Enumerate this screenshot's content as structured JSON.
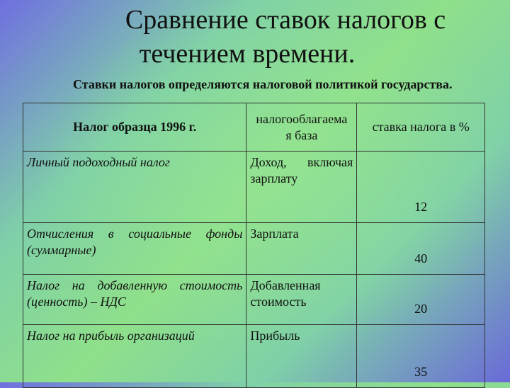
{
  "title": {
    "line1": "Сравнение ставок налогов с",
    "line2": "течением времени."
  },
  "subtitle": "Ставки налогов определяются налоговой политикой государства.",
  "table": {
    "headers": {
      "tax": "Налог образца 1996 г.",
      "base_line1": "налогооблагаема",
      "base_line2": "я база",
      "rate": "ставка налога в %"
    },
    "rows": [
      {
        "tax": "Личный подоходный налог",
        "base": "Доход, включая зарплату",
        "rate": "12"
      },
      {
        "tax": "Отчисления в социальные фонды (суммарные)",
        "base": "Зарплата",
        "rate": "40"
      },
      {
        "tax": "Налог на добавленную стоимость (ценность) – НДС",
        "base": "Добавленная стоимость",
        "rate": "20"
      },
      {
        "tax": "Налог на прибыль организаций",
        "base": "Прибыль",
        "rate": "35"
      }
    ]
  }
}
